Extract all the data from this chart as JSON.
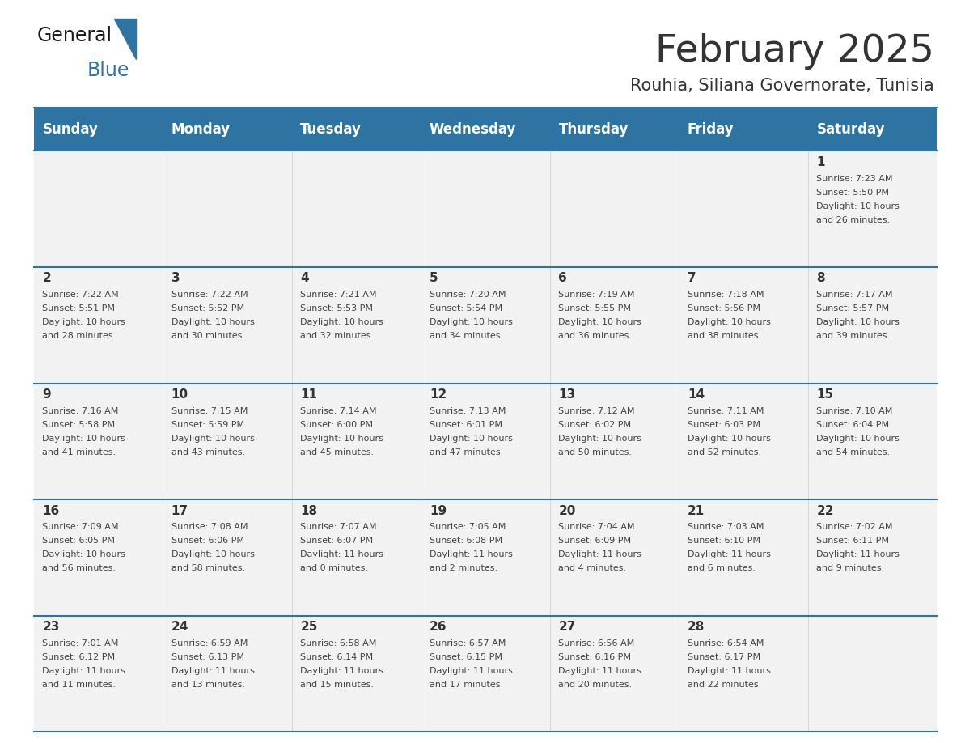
{
  "title": "February 2025",
  "subtitle": "Rouhia, Siliana Governorate, Tunisia",
  "days_of_week": [
    "Sunday",
    "Monday",
    "Tuesday",
    "Wednesday",
    "Thursday",
    "Friday",
    "Saturday"
  ],
  "header_bg": "#2e74a3",
  "header_text": "#ffffff",
  "row_bg_light": "#f2f2f2",
  "row_bg_white": "#ffffff",
  "separator_color": "#2e74a3",
  "title_color": "#333333",
  "subtitle_color": "#333333",
  "day_num_color": "#333333",
  "cell_text_color": "#444444",
  "calendar_data": [
    [
      null,
      null,
      null,
      null,
      null,
      null,
      {
        "day": 1,
        "sunrise": "7:23 AM",
        "sunset": "5:50 PM",
        "daylight": "10 hours and 26 minutes."
      }
    ],
    [
      {
        "day": 2,
        "sunrise": "7:22 AM",
        "sunset": "5:51 PM",
        "daylight": "10 hours and 28 minutes."
      },
      {
        "day": 3,
        "sunrise": "7:22 AM",
        "sunset": "5:52 PM",
        "daylight": "10 hours and 30 minutes."
      },
      {
        "day": 4,
        "sunrise": "7:21 AM",
        "sunset": "5:53 PM",
        "daylight": "10 hours and 32 minutes."
      },
      {
        "day": 5,
        "sunrise": "7:20 AM",
        "sunset": "5:54 PM",
        "daylight": "10 hours and 34 minutes."
      },
      {
        "day": 6,
        "sunrise": "7:19 AM",
        "sunset": "5:55 PM",
        "daylight": "10 hours and 36 minutes."
      },
      {
        "day": 7,
        "sunrise": "7:18 AM",
        "sunset": "5:56 PM",
        "daylight": "10 hours and 38 minutes."
      },
      {
        "day": 8,
        "sunrise": "7:17 AM",
        "sunset": "5:57 PM",
        "daylight": "10 hours and 39 minutes."
      }
    ],
    [
      {
        "day": 9,
        "sunrise": "7:16 AM",
        "sunset": "5:58 PM",
        "daylight": "10 hours and 41 minutes."
      },
      {
        "day": 10,
        "sunrise": "7:15 AM",
        "sunset": "5:59 PM",
        "daylight": "10 hours and 43 minutes."
      },
      {
        "day": 11,
        "sunrise": "7:14 AM",
        "sunset": "6:00 PM",
        "daylight": "10 hours and 45 minutes."
      },
      {
        "day": 12,
        "sunrise": "7:13 AM",
        "sunset": "6:01 PM",
        "daylight": "10 hours and 47 minutes."
      },
      {
        "day": 13,
        "sunrise": "7:12 AM",
        "sunset": "6:02 PM",
        "daylight": "10 hours and 50 minutes."
      },
      {
        "day": 14,
        "sunrise": "7:11 AM",
        "sunset": "6:03 PM",
        "daylight": "10 hours and 52 minutes."
      },
      {
        "day": 15,
        "sunrise": "7:10 AM",
        "sunset": "6:04 PM",
        "daylight": "10 hours and 54 minutes."
      }
    ],
    [
      {
        "day": 16,
        "sunrise": "7:09 AM",
        "sunset": "6:05 PM",
        "daylight": "10 hours and 56 minutes."
      },
      {
        "day": 17,
        "sunrise": "7:08 AM",
        "sunset": "6:06 PM",
        "daylight": "10 hours and 58 minutes."
      },
      {
        "day": 18,
        "sunrise": "7:07 AM",
        "sunset": "6:07 PM",
        "daylight": "11 hours and 0 minutes."
      },
      {
        "day": 19,
        "sunrise": "7:05 AM",
        "sunset": "6:08 PM",
        "daylight": "11 hours and 2 minutes."
      },
      {
        "day": 20,
        "sunrise": "7:04 AM",
        "sunset": "6:09 PM",
        "daylight": "11 hours and 4 minutes."
      },
      {
        "day": 21,
        "sunrise": "7:03 AM",
        "sunset": "6:10 PM",
        "daylight": "11 hours and 6 minutes."
      },
      {
        "day": 22,
        "sunrise": "7:02 AM",
        "sunset": "6:11 PM",
        "daylight": "11 hours and 9 minutes."
      }
    ],
    [
      {
        "day": 23,
        "sunrise": "7:01 AM",
        "sunset": "6:12 PM",
        "daylight": "11 hours and 11 minutes."
      },
      {
        "day": 24,
        "sunrise": "6:59 AM",
        "sunset": "6:13 PM",
        "daylight": "11 hours and 13 minutes."
      },
      {
        "day": 25,
        "sunrise": "6:58 AM",
        "sunset": "6:14 PM",
        "daylight": "11 hours and 15 minutes."
      },
      {
        "day": 26,
        "sunrise": "6:57 AM",
        "sunset": "6:15 PM",
        "daylight": "11 hours and 17 minutes."
      },
      {
        "day": 27,
        "sunrise": "6:56 AM",
        "sunset": "6:16 PM",
        "daylight": "11 hours and 20 minutes."
      },
      {
        "day": 28,
        "sunrise": "6:54 AM",
        "sunset": "6:17 PM",
        "daylight": "11 hours and 22 minutes."
      },
      null
    ]
  ]
}
